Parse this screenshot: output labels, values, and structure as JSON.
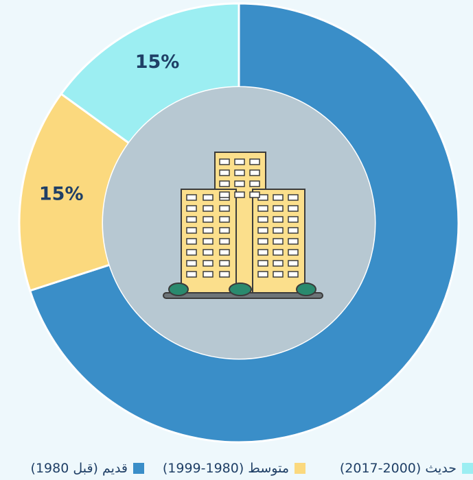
{
  "chart_data": {
    "type": "donut",
    "categories": [
      "قديم (قبل 1980)",
      "متوسط (1980-1999)",
      "حديث (2000-2017)"
    ],
    "values": [
      70,
      15,
      15
    ],
    "value_labels": [
      null,
      "15%",
      "15%"
    ],
    "colors": [
      "#3a8ec8",
      "#fbd97e",
      "#9ceef2"
    ],
    "legend": "bottom"
  }
}
